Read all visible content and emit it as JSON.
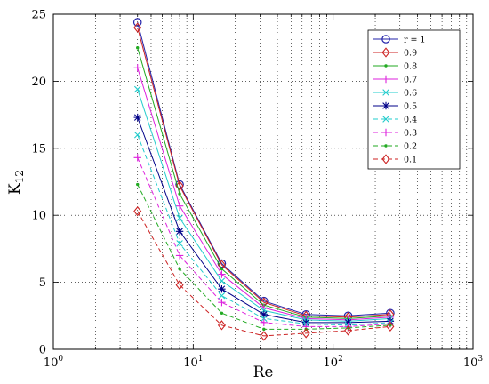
{
  "chart_data": {
    "type": "line",
    "xscale": "log",
    "xlim": [
      1,
      1000
    ],
    "ylim": [
      0,
      25
    ],
    "xlabel": "Re",
    "ylabel": "K",
    "ylabel_sub": "12",
    "grid": true,
    "legend": "top-right",
    "x_ticks": [
      {
        "value": 1,
        "base": "10",
        "exp": "0"
      },
      {
        "value": 10,
        "base": "10",
        "exp": "1"
      },
      {
        "value": 100,
        "base": "10",
        "exp": "2"
      },
      {
        "value": 1000,
        "base": "10",
        "exp": "3"
      }
    ],
    "y_ticks": [
      0,
      5,
      10,
      15,
      20,
      25
    ],
    "x": [
      4,
      8,
      16,
      32,
      64,
      128,
      256
    ],
    "series": [
      {
        "name": "r = 1",
        "values": [
          24.4,
          12.3,
          6.4,
          3.6,
          2.6,
          2.5,
          2.7
        ],
        "color": "#2222aa",
        "dash": "solid",
        "marker": "circle"
      },
      {
        "name": "0.9",
        "values": [
          24.0,
          12.2,
          6.3,
          3.5,
          2.5,
          2.4,
          2.6
        ],
        "color": "#cc2222",
        "dash": "solid",
        "marker": "diamond"
      },
      {
        "name": "0.8",
        "values": [
          22.5,
          11.6,
          6.0,
          3.3,
          2.4,
          2.3,
          2.5
        ],
        "color": "#22aa22",
        "dash": "solid",
        "marker": "dot"
      },
      {
        "name": "0.7",
        "values": [
          21.0,
          10.7,
          5.6,
          3.1,
          2.3,
          2.2,
          2.4
        ],
        "color": "#dd22dd",
        "dash": "solid",
        "marker": "plus"
      },
      {
        "name": "0.6",
        "values": [
          19.4,
          9.8,
          5.1,
          2.9,
          2.2,
          2.1,
          2.3
        ],
        "color": "#22cccc",
        "dash": "solid",
        "marker": "x"
      },
      {
        "name": "0.5",
        "values": [
          17.3,
          8.8,
          4.5,
          2.6,
          2.0,
          2.0,
          2.1
        ],
        "color": "#000088",
        "dash": "solid",
        "marker": "star"
      },
      {
        "name": "0.4",
        "values": [
          16.0,
          7.9,
          4.0,
          2.3,
          1.9,
          1.8,
          2.0
        ],
        "color": "#22cccc",
        "dash": "dashed",
        "marker": "x"
      },
      {
        "name": "0.3",
        "values": [
          14.3,
          7.0,
          3.5,
          2.0,
          1.7,
          1.7,
          1.9
        ],
        "color": "#dd22dd",
        "dash": "dashed",
        "marker": "plus"
      },
      {
        "name": "0.2",
        "values": [
          12.3,
          6.0,
          2.7,
          1.5,
          1.5,
          1.6,
          1.8
        ],
        "color": "#22aa22",
        "dash": "dashed",
        "marker": "dot"
      },
      {
        "name": "0.1",
        "values": [
          10.3,
          4.8,
          1.8,
          1.0,
          1.2,
          1.4,
          1.7
        ],
        "color": "#cc2222",
        "dash": "dashed",
        "marker": "diamond"
      }
    ]
  }
}
